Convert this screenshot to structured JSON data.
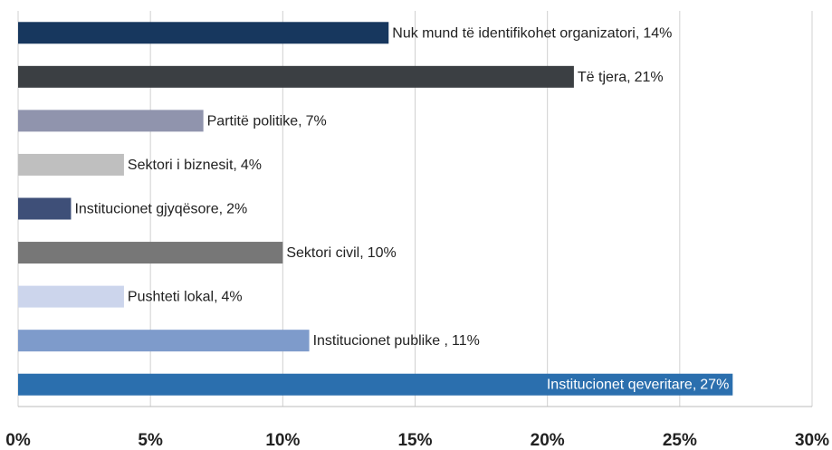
{
  "chart_data": {
    "type": "bar",
    "orientation": "horizontal",
    "categories": [
      "Nuk mund të identifikohet organizatori,",
      "Të tjera,",
      "Partitë politike,",
      "Sektori i biznesit,",
      "Institucionet gjyqësore,",
      "Sektori civil,",
      "Pushteti lokal,",
      "Institucionet publike ,",
      "Institucionet qeveritare,"
    ],
    "values": [
      14,
      21,
      7,
      4,
      2,
      10,
      4,
      11,
      27
    ],
    "value_labels": [
      "14%",
      "21%",
      "7%",
      "4%",
      "2%",
      "10%",
      "4%",
      "11%",
      "27%"
    ],
    "colors": [
      "#17375e",
      "#3b3f43",
      "#9094ad",
      "#bfbfbf",
      "#3e4f78",
      "#777777",
      "#ccd5ec",
      "#7e9bcb",
      "#2b6fae"
    ],
    "xlim": [
      0,
      30
    ],
    "xticks": [
      {
        "value": 0,
        "label": "0%"
      },
      {
        "value": 5,
        "label": "5%"
      },
      {
        "value": 10,
        "label": "10%"
      },
      {
        "value": 15,
        "label": "15%"
      },
      {
        "value": 20,
        "label": "20%"
      },
      {
        "value": 25,
        "label": "25%"
      },
      {
        "value": 30,
        "label": "30%"
      }
    ],
    "grid": true
  }
}
